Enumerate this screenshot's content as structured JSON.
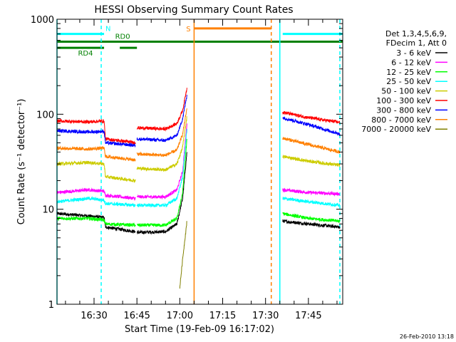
{
  "chart_data": {
    "type": "line",
    "title": "HESSI Observing Summary Count Rates",
    "xlabel": "Start Time (19-Feb-09 16:17:02)",
    "ylabel": "Count Rate (s⁻¹ detector⁻¹)",
    "y_scale": "log",
    "ylim": [
      1,
      1000
    ],
    "xlim": [
      "16:17:02",
      "17:57:00"
    ],
    "y_ticks": [
      {
        "value": 1,
        "label": "1"
      },
      {
        "value": 10,
        "label": "10"
      },
      {
        "value": 100,
        "label": "100"
      },
      {
        "value": 1000,
        "label": "1000"
      }
    ],
    "x_ticks": [
      {
        "value": "16:30",
        "label": "16:30"
      },
      {
        "value": "16:45",
        "label": "16:45"
      },
      {
        "value": "17:00",
        "label": "17:00"
      },
      {
        "value": "17:15",
        "label": "17:15"
      },
      {
        "value": "17:30",
        "label": "17:30"
      },
      {
        "value": "17:45",
        "label": "17:45"
      }
    ],
    "legend_header": [
      "Det 1,3,4,5,6,9,",
      "FDecim 1, Att 0"
    ],
    "legend_position": "right",
    "series": [
      {
        "name": "3 - 6 keV",
        "color": "#000000",
        "segments": [
          {
            "t": [
              "16:17:02",
              "16:28",
              "16:33:30",
              "16:34",
              "16:44:30"
            ],
            "v": [
              9,
              8.5,
              8.2,
              6.5,
              5.8
            ]
          },
          {
            "t": [
              "16:45",
              "16:55",
              "16:59",
              "17:01",
              "17:02:30"
            ],
            "v": [
              5.7,
              5.8,
              7,
              13,
              40
            ]
          },
          {
            "t": [
              "17:36",
              "17:45",
              "17:56"
            ],
            "v": [
              7.5,
              7,
              6.5
            ]
          }
        ]
      },
      {
        "name": "6 - 12 keV",
        "color": "#ff00ff",
        "segments": [
          {
            "t": [
              "16:17:02",
              "16:28",
              "16:33:30",
              "16:34",
              "16:44:30"
            ],
            "v": [
              15,
              16,
              15.5,
              14,
              13
            ]
          },
          {
            "t": [
              "16:45",
              "16:55",
              "16:59",
              "17:01",
              "17:02:30"
            ],
            "v": [
              13.5,
              13.5,
              16,
              25,
              80
            ]
          },
          {
            "t": [
              "17:36",
              "17:45",
              "17:56"
            ],
            "v": [
              16,
              15,
              14.5
            ]
          }
        ]
      },
      {
        "name": "12 - 25 keV",
        "color": "#00ff00",
        "segments": [
          {
            "t": [
              "16:17:02",
              "16:28",
              "16:33:30",
              "16:34",
              "16:44:30"
            ],
            "v": [
              8,
              8,
              7.7,
              7,
              6.8
            ]
          },
          {
            "t": [
              "16:45",
              "16:55",
              "16:59",
              "17:01",
              "17:02:30"
            ],
            "v": [
              6.8,
              6.8,
              8,
              15,
              55
            ]
          },
          {
            "t": [
              "17:36",
              "17:45",
              "17:56"
            ],
            "v": [
              9,
              8,
              7.5
            ]
          }
        ]
      },
      {
        "name": "25 - 50 keV",
        "color": "#00ffff",
        "segments": [
          {
            "t": [
              "16:17:02",
              "16:28",
              "16:33:30",
              "16:34",
              "16:44:30"
            ],
            "v": [
              12,
              13,
              12.5,
              11.5,
              11
            ]
          },
          {
            "t": [
              "16:45",
              "16:55",
              "16:59",
              "17:01",
              "17:02:30"
            ],
            "v": [
              11,
              11,
              13,
              22,
              70
            ]
          },
          {
            "t": [
              "17:36",
              "17:45",
              "17:56"
            ],
            "v": [
              13,
              12,
              11
            ]
          }
        ]
      },
      {
        "name": "50 - 100 keV",
        "color": "#cccc00",
        "segments": [
          {
            "t": [
              "16:17:02",
              "16:28",
              "16:33:30",
              "16:34",
              "16:44:30"
            ],
            "v": [
              30,
              31,
              30,
              22,
              20
            ]
          },
          {
            "t": [
              "16:45",
              "16:55",
              "16:59",
              "17:01",
              "17:02:30"
            ],
            "v": [
              27,
              26,
              30,
              45,
              95
            ]
          },
          {
            "t": [
              "17:36",
              "17:45",
              "17:56"
            ],
            "v": [
              36,
              32,
              29
            ]
          }
        ]
      },
      {
        "name": "100 - 300 keV",
        "color": "#ff0000",
        "segments": [
          {
            "t": [
              "16:17:02",
              "16:28",
              "16:33:30",
              "16:34",
              "16:44:30"
            ],
            "v": [
              85,
              83,
              85,
              55,
              50
            ]
          },
          {
            "t": [
              "16:45",
              "16:55",
              "16:59",
              "17:01",
              "17:02:30"
            ],
            "v": [
              72,
              70,
              80,
              110,
              190
            ]
          },
          {
            "t": [
              "17:36",
              "17:45",
              "17:56"
            ],
            "v": [
              105,
              92,
              82
            ]
          }
        ]
      },
      {
        "name": "300 - 800 keV",
        "color": "#0000ff",
        "segments": [
          {
            "t": [
              "16:17:02",
              "16:28",
              "16:33:30",
              "16:34",
              "16:44:30"
            ],
            "v": [
              67,
              65,
              66,
              50,
              47
            ]
          },
          {
            "t": [
              "16:45",
              "16:55",
              "16:59",
              "17:01",
              "17:02:30"
            ],
            "v": [
              55,
              53,
              60,
              90,
              160
            ]
          },
          {
            "t": [
              "17:36",
              "17:45",
              "17:56"
            ],
            "v": [
              92,
              78,
              62
            ]
          }
        ]
      },
      {
        "name": "800 - 7000 keV",
        "color": "#ff8000",
        "segments": [
          {
            "t": [
              "16:17:02",
              "16:28",
              "16:33:30",
              "16:34",
              "16:44:30"
            ],
            "v": [
              44,
              43,
              44,
              36,
              33
            ]
          },
          {
            "t": [
              "16:45",
              "16:55",
              "16:59",
              "17:01",
              "17:02:30"
            ],
            "v": [
              38,
              37,
              42,
              62,
              115
            ]
          },
          {
            "t": [
              "17:36",
              "17:45",
              "17:56"
            ],
            "v": [
              56,
              48,
              40
            ]
          }
        ]
      },
      {
        "name": "7000 - 20000 keV",
        "color": "#808000",
        "segments": [
          {
            "t": [
              "17:00",
              "17:01",
              "17:02:30"
            ],
            "v": [
              1.5,
              3,
              7.5
            ]
          }
        ]
      }
    ],
    "flags": [
      {
        "label": "N",
        "color": "#00ffff",
        "value": 700,
        "spans": [
          [
            "16:17:02",
            "16:33:30"
          ],
          [
            "17:36",
            "17:57:00"
          ]
        ]
      },
      {
        "label": "RD0",
        "color": "#008000",
        "value": 580,
        "spans": [
          [
            "16:17:02",
            "17:57:00"
          ]
        ]
      },
      {
        "label": "RD4",
        "color": "#008000",
        "value": 500,
        "spans": [
          [
            "16:17:02",
            "16:33:30"
          ],
          [
            "16:39",
            "16:45"
          ]
        ]
      },
      {
        "label": "S",
        "color": "#ff8000",
        "value": 800,
        "spans": [
          [
            "17:05",
            "17:32"
          ]
        ]
      }
    ],
    "vertical_markers": [
      {
        "t": "16:17:02",
        "color": "#00ffff",
        "style": "solid"
      },
      {
        "t": "16:32:30",
        "color": "#00ffff",
        "style": "dashed"
      },
      {
        "t": "17:05",
        "color": "#ff8000",
        "style": "solid"
      },
      {
        "t": "17:32",
        "color": "#ff8000",
        "style": "dashed"
      },
      {
        "t": "17:35",
        "color": "#00ffff",
        "style": "solid"
      },
      {
        "t": "17:56",
        "color": "#00ffff",
        "style": "dashed"
      }
    ]
  },
  "footer_timestamp": "26-Feb-2010 13:18"
}
